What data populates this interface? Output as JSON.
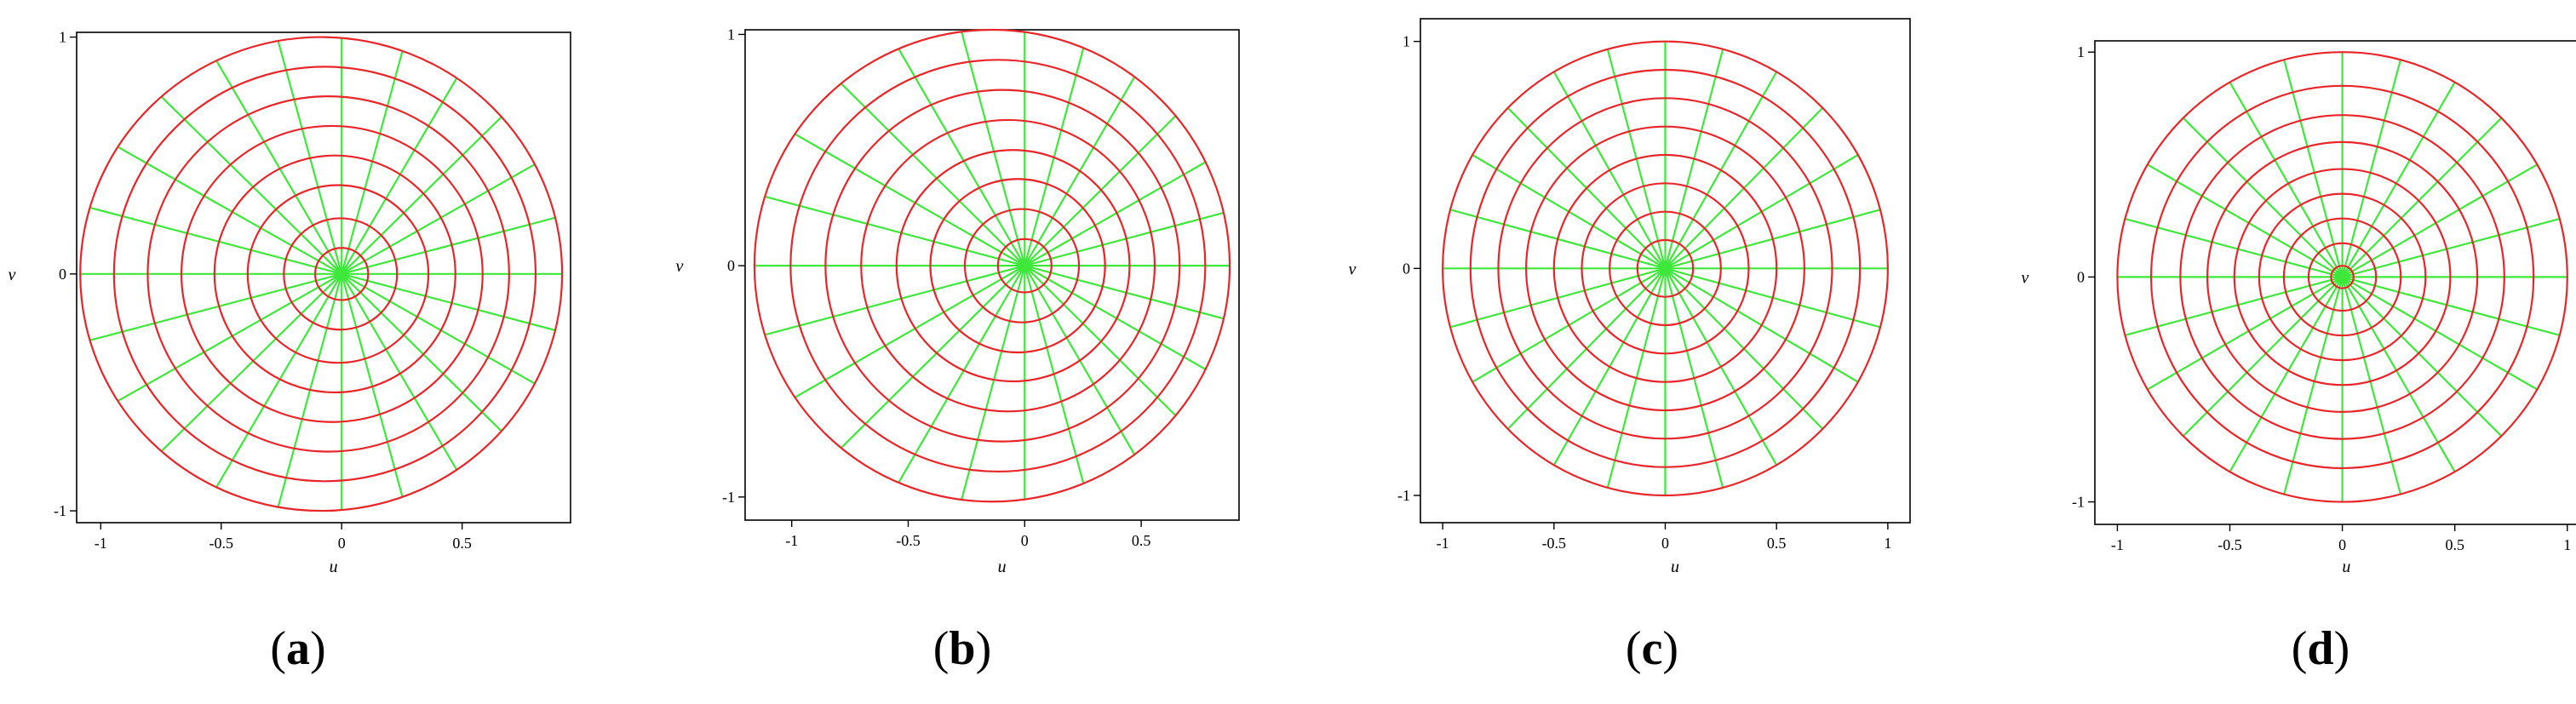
{
  "figure": {
    "panels": [
      {
        "caption_open": "(",
        "caption_letter": "a",
        "caption_close": ")",
        "xlabel": "u",
        "ylabel": "v",
        "xlim": [
          -1.1,
          0.95
        ],
        "ylim": [
          -1.05,
          1.02
        ],
        "xticks": [
          {
            "v": -1,
            "t": "-1"
          },
          {
            "v": -0.5,
            "t": "-0.5"
          },
          {
            "v": 0,
            "t": "0"
          },
          {
            "v": 0.5,
            "t": "0.5"
          }
        ],
        "yticks": [
          {
            "v": -1,
            "t": "-1"
          },
          {
            "v": 0,
            "t": "0"
          },
          {
            "v": 1,
            "t": "1"
          }
        ],
        "radial_lines": 24,
        "outer_radius": 1.0,
        "circles": [
          {
            "cx": -0.085,
            "cy": 0.0,
            "r": 1.0
          },
          {
            "cx": -0.07,
            "cy": 0.0,
            "r": 0.875
          },
          {
            "cx": -0.055,
            "cy": 0.0,
            "r": 0.75
          },
          {
            "cx": -0.04,
            "cy": 0.0,
            "r": 0.625
          },
          {
            "cx": -0.028,
            "cy": 0.0,
            "r": 0.5
          },
          {
            "cx": -0.015,
            "cy": 0.0,
            "r": 0.375
          },
          {
            "cx": -0.005,
            "cy": 0.0,
            "r": 0.235
          },
          {
            "cx": 0.0,
            "cy": 0.0,
            "r": 0.11
          }
        ]
      },
      {
        "caption_open": "(",
        "caption_letter": "b",
        "caption_close": ")",
        "xlabel": "u",
        "ylabel": "v",
        "xlim": [
          -1.2,
          0.92
        ],
        "ylim": [
          -1.1,
          1.02
        ],
        "xticks": [
          {
            "v": -1,
            "t": "-1"
          },
          {
            "v": -0.5,
            "t": "-0.5"
          },
          {
            "v": 0,
            "t": "0"
          },
          {
            "v": 0.5,
            "t": "0.5"
          }
        ],
        "yticks": [
          {
            "v": -1,
            "t": "-1"
          },
          {
            "v": 0,
            "t": "0"
          },
          {
            "v": 1,
            "t": "1"
          }
        ],
        "radial_lines": 24,
        "outer_radius": 1.02,
        "circles": [
          {
            "cx": -0.14,
            "cy": 0.0,
            "r": 1.02
          },
          {
            "cx": -0.115,
            "cy": 0.0,
            "r": 0.89
          },
          {
            "cx": -0.095,
            "cy": 0.0,
            "r": 0.76
          },
          {
            "cx": -0.072,
            "cy": 0.0,
            "r": 0.63
          },
          {
            "cx": -0.05,
            "cy": 0.0,
            "r": 0.5
          },
          {
            "cx": -0.03,
            "cy": 0.0,
            "r": 0.375
          },
          {
            "cx": -0.012,
            "cy": 0.0,
            "r": 0.245
          },
          {
            "cx": 0.0,
            "cy": 0.0,
            "r": 0.115
          }
        ]
      },
      {
        "caption_open": "(",
        "caption_letter": "c",
        "caption_close": ")",
        "xlabel": "u",
        "ylabel": "v",
        "xlim": [
          -1.1,
          1.1
        ],
        "ylim": [
          -1.12,
          1.1
        ],
        "xticks": [
          {
            "v": -1,
            "t": "-1"
          },
          {
            "v": -0.5,
            "t": "-0.5"
          },
          {
            "v": 0,
            "t": "0"
          },
          {
            "v": 0.5,
            "t": "0.5"
          },
          {
            "v": 1,
            "t": "1"
          }
        ],
        "yticks": [
          {
            "v": -1,
            "t": "-1"
          },
          {
            "v": 0,
            "t": "0"
          },
          {
            "v": 1,
            "t": "1"
          }
        ],
        "radial_lines": 24,
        "outer_radius": 1.0,
        "circles": [
          {
            "cx": 0.0,
            "cy": 0.0,
            "r": 1.0
          },
          {
            "cx": 0.0,
            "cy": 0.0,
            "r": 0.875
          },
          {
            "cx": 0.0,
            "cy": 0.0,
            "r": 0.75
          },
          {
            "cx": 0.0,
            "cy": 0.0,
            "r": 0.625
          },
          {
            "cx": 0.0,
            "cy": 0.0,
            "r": 0.5
          },
          {
            "cx": 0.0,
            "cy": 0.0,
            "r": 0.375
          },
          {
            "cx": 0.0,
            "cy": 0.0,
            "r": 0.25
          },
          {
            "cx": 0.0,
            "cy": 0.0,
            "r": 0.125
          }
        ]
      },
      {
        "caption_open": "(",
        "caption_letter": "d",
        "caption_close": ")",
        "xlabel": "u",
        "ylabel": "v",
        "xlim": [
          -1.1,
          1.05
        ],
        "ylim": [
          -1.1,
          1.05
        ],
        "xticks": [
          {
            "v": -1,
            "t": "-1"
          },
          {
            "v": -0.5,
            "t": "-0.5"
          },
          {
            "v": 0,
            "t": "0"
          },
          {
            "v": 0.5,
            "t": "0.5"
          },
          {
            "v": 1,
            "t": "1"
          }
        ],
        "yticks": [
          {
            "v": -1,
            "t": "-1"
          },
          {
            "v": 0,
            "t": "0"
          },
          {
            "v": 1,
            "t": "1"
          }
        ],
        "radial_lines": 24,
        "outer_radius": 1.0,
        "circles": [
          {
            "cx": 0.0,
            "cy": 0.0,
            "r": 1.0
          },
          {
            "cx": 0.0,
            "cy": 0.0,
            "r": 0.85
          },
          {
            "cx": 0.0,
            "cy": 0.0,
            "r": 0.72
          },
          {
            "cx": 0.0,
            "cy": 0.0,
            "r": 0.6
          },
          {
            "cx": 0.0,
            "cy": 0.0,
            "r": 0.48
          },
          {
            "cx": 0.0,
            "cy": 0.0,
            "r": 0.37
          },
          {
            "cx": 0.0,
            "cy": 0.0,
            "r": 0.26
          },
          {
            "cx": 0.0,
            "cy": 0.0,
            "r": 0.15
          },
          {
            "cx": 0.0,
            "cy": 0.0,
            "r": 0.05
          }
        ]
      }
    ],
    "colors": {
      "circle": "#e8262a",
      "radial": "#3ee83a",
      "frame": "#000000"
    }
  }
}
